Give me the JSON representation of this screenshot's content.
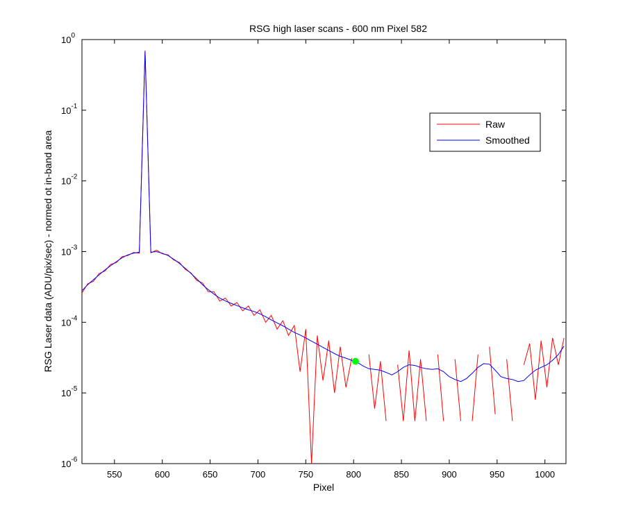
{
  "chart_data": {
    "type": "line",
    "title": "RSG high laser scans  - 600 nm    Pixel 582",
    "xlabel": "Pixel",
    "ylabel": "RSG Laser data (ADU/pix/sec) - normed ot in-band area",
    "yscale": "log",
    "grid": false,
    "legend": "upper right",
    "xlim": [
      516,
      1022
    ],
    "ylim": [
      1e-06,
      1
    ],
    "xticks": [
      550,
      600,
      650,
      700,
      750,
      800,
      850,
      900,
      950,
      1000
    ],
    "yticks": [
      {
        "value": 1e-06,
        "label": "10",
        "exponent": "-6"
      },
      {
        "value": 1e-05,
        "label": "10",
        "exponent": "-5"
      },
      {
        "value": 0.0001,
        "label": "10",
        "exponent": "-4"
      },
      {
        "value": 0.001,
        "label": "10",
        "exponent": "-3"
      },
      {
        "value": 0.01,
        "label": "10",
        "exponent": "-2"
      },
      {
        "value": 0.1,
        "label": "10",
        "exponent": "-1"
      },
      {
        "value": 1,
        "label": "10",
        "exponent": "0"
      }
    ],
    "x": [
      516,
      522,
      528,
      534,
      540,
      546,
      552,
      558,
      564,
      570,
      576,
      582,
      588,
      594,
      600,
      606,
      612,
      618,
      624,
      630,
      636,
      642,
      648,
      654,
      660,
      666,
      672,
      678,
      684,
      690,
      696,
      702,
      708,
      714,
      720,
      726,
      732,
      738,
      744,
      750,
      756,
      762,
      768,
      774,
      780,
      786,
      792,
      798,
      804,
      810,
      816,
      822,
      828,
      834,
      840,
      846,
      852,
      858,
      864,
      870,
      876,
      882,
      888,
      894,
      900,
      906,
      912,
      918,
      924,
      930,
      936,
      942,
      948,
      954,
      960,
      966,
      972,
      978,
      984,
      990,
      996,
      1002,
      1008,
      1014,
      1020
    ],
    "series": [
      {
        "name": "Raw",
        "color": "#ff0000",
        "values": [
          0.00026,
          0.00035,
          0.00038,
          0.00049,
          0.00053,
          0.00066,
          0.0007,
          0.00085,
          0.00088,
          0.00097,
          0.00095,
          0.7,
          0.00096,
          0.00105,
          0.00093,
          0.0009,
          0.00076,
          0.0007,
          0.00056,
          0.0005,
          0.00039,
          0.00036,
          0.00027,
          0.00027,
          0.0002,
          0.00022,
          0.00017,
          0.00019,
          0.000145,
          0.00017,
          0.000125,
          0.00015,
          0.0001,
          0.000125,
          8e-05,
          0.000105,
          6.5e-05,
          9e-05,
          2e-05,
          8e-05,
          1e-06,
          6.5e-05,
          1.5e-05,
          5.5e-05,
          1e-05,
          4.5e-05,
          1.2e-05,
          3.1e-05,
          null,
          null,
          3.5e-05,
          6e-06,
          2.8e-05,
          4e-06,
          null,
          2.5e-05,
          4e-06,
          4e-05,
          4e-06,
          3e-05,
          4e-06,
          null,
          3.5e-05,
          4e-06,
          null,
          3e-05,
          4e-06,
          null,
          4e-06,
          3.5e-05,
          null,
          4.5e-05,
          5e-06,
          null,
          3e-05,
          4e-06,
          null,
          2.5e-05,
          5e-05,
          8e-06,
          5.5e-05,
          1.2e-05,
          6e-05,
          2.5e-05,
          6e-05
        ]
      },
      {
        "name": "Smoothed",
        "color": "#0000ff",
        "values": [
          0.00028,
          0.00034,
          0.0004,
          0.00047,
          0.00055,
          0.00063,
          0.00072,
          0.00082,
          0.0009,
          0.00095,
          0.00098,
          0.68,
          0.00098,
          0.001,
          0.00095,
          0.00088,
          0.00078,
          0.00068,
          0.00058,
          0.00049,
          0.00041,
          0.00034,
          0.00029,
          0.00025,
          0.00022,
          0.0002,
          0.000185,
          0.000172,
          0.00016,
          0.00015,
          0.000142,
          0.000132,
          0.00012,
          0.000108,
          9.8e-05,
          8.9e-05,
          8e-05,
          7.2e-05,
          6.6e-05,
          6e-05,
          5.4e-05,
          4.9e-05,
          4.4e-05,
          4e-05,
          3.6e-05,
          3.3e-05,
          3.1e-05,
          2.9e-05,
          2.7e-05,
          2.4e-05,
          2.2e-05,
          2.15e-05,
          2.1e-05,
          1.95e-05,
          1.8e-05,
          2e-05,
          2.3e-05,
          2.5e-05,
          2.45e-05,
          2.3e-05,
          2.2e-05,
          2.15e-05,
          2.2e-05,
          2e-05,
          1.7e-05,
          1.55e-05,
          1.45e-05,
          1.6e-05,
          1.9e-05,
          2.3e-05,
          2.6e-05,
          2.55e-05,
          2.1e-05,
          1.7e-05,
          1.6e-05,
          1.55e-05,
          1.45e-05,
          1.5e-05,
          1.8e-05,
          2.1e-05,
          2.3e-05,
          2.5e-05,
          2.9e-05,
          3.5e-05,
          4.6e-05
        ]
      }
    ],
    "marker": {
      "x": 802,
      "y": 2.8e-05,
      "color": "#00ff00"
    }
  }
}
